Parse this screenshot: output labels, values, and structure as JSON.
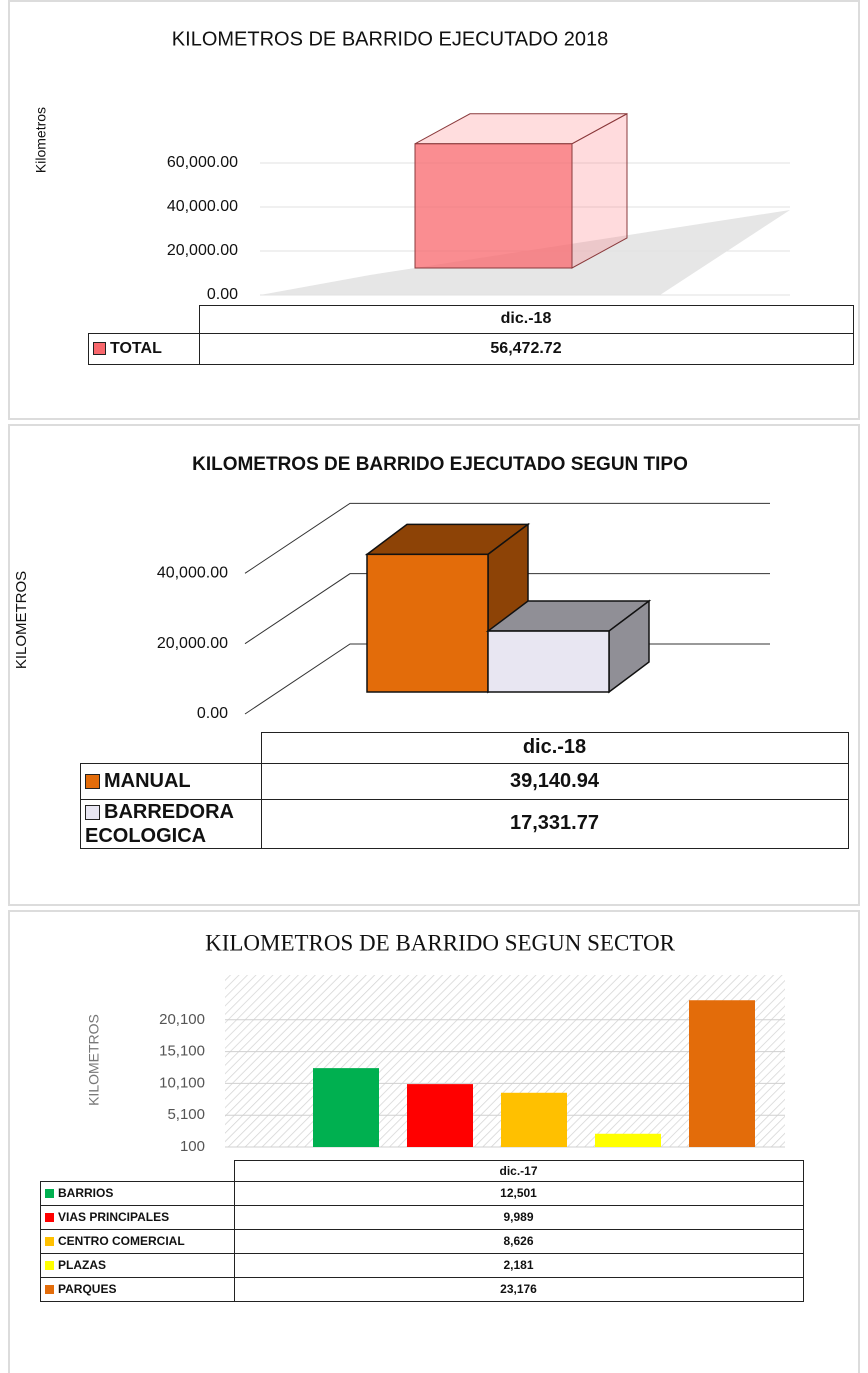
{
  "chart_data": [
    {
      "type": "bar3d",
      "title": "KILOMETROS DE BARRIDO EJECUTADO 2018",
      "ylabel": "Kilometros",
      "categories": [
        "dic.-18"
      ],
      "series": [
        {
          "name": "TOTAL",
          "color": "#f8676c",
          "values": [
            56472.72
          ],
          "value_labels": [
            "56,472.72"
          ]
        }
      ],
      "ylim": [
        0,
        80000
      ],
      "yticks": [
        {
          "value": 0,
          "label": "0.00"
        },
        {
          "value": 20000,
          "label": "20,000.00"
        },
        {
          "value": 40000,
          "label": "40,000.00"
        },
        {
          "value": 60000,
          "label": "60,000.00"
        }
      ],
      "grid": true,
      "data_table": true
    },
    {
      "type": "bar3d",
      "title": "KILOMETROS DE BARRIDO EJECUTADO SEGUN TIPO",
      "ylabel": "KILOMETROS",
      "categories": [
        "dic.-18"
      ],
      "series": [
        {
          "name": "MANUAL",
          "color": "#e36c0a",
          "values": [
            39140.94
          ],
          "value_labels": [
            "39,140.94"
          ]
        },
        {
          "name": "BARREDORA ECOLOGICA",
          "color": "#e8e6f2",
          "values": [
            17331.77
          ],
          "value_labels": [
            "17,331.77"
          ]
        }
      ],
      "ylim": [
        0,
        60000
      ],
      "yticks": [
        {
          "value": 0,
          "label": "0.00"
        },
        {
          "value": 20000,
          "label": "20,000.00"
        },
        {
          "value": 40000,
          "label": "40,000.00"
        }
      ],
      "grid": true,
      "data_table": true
    },
    {
      "type": "bar",
      "title": "KILOMETROS DE BARRIDO SEGUN SECTOR",
      "ylabel": "KILOMETROS",
      "categories": [
        "dic.-17"
      ],
      "series": [
        {
          "name": "BARRIOS",
          "color": "#00b050",
          "values": [
            12501
          ],
          "value_labels": [
            "12,501"
          ]
        },
        {
          "name": "VIAS PRINCIPALES",
          "color": "#ff0000",
          "values": [
            9989
          ],
          "value_labels": [
            "9,989"
          ]
        },
        {
          "name": "CENTRO COMERCIAL",
          "color": "#ffc000",
          "values": [
            8626
          ],
          "value_labels": [
            "8,626"
          ]
        },
        {
          "name": "PLAZAS",
          "color": "#ffff00",
          "values": [
            2181
          ],
          "value_labels": [
            "2,181"
          ]
        },
        {
          "name": "PARQUES",
          "color": "#e36c0a",
          "values": [
            23176
          ],
          "value_labels": [
            "23,176"
          ]
        }
      ],
      "ylim": [
        100,
        25100
      ],
      "yticks": [
        100,
        {
          "value": 5100,
          "label": "5,100"
        },
        {
          "value": 10100,
          "label": "10,100"
        },
        {
          "value": 15100,
          "label": "15,100"
        },
        {
          "value": 20100,
          "label": "20,100"
        }
      ],
      "grid": true,
      "data_table": true
    }
  ]
}
